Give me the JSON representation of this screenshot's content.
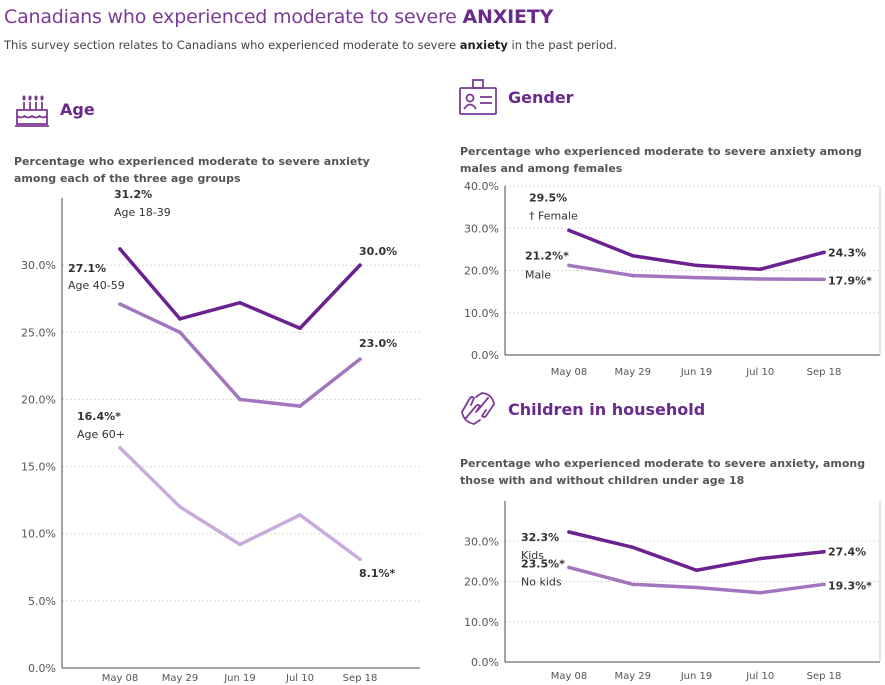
{
  "header": {
    "title_prefix": "Canadians who experienced moderate to severe ",
    "title_emphasis": "ANXIETY",
    "subtitle_prefix": "This survey section relates to Canadians who experienced moderate to severe ",
    "subtitle_emphasis": "anxiety",
    "subtitle_suffix": " in the past period."
  },
  "sections": {
    "age": {
      "title": "Age",
      "icon": "birthday-cake-icon",
      "description": "Percentage who experienced moderate to severe anxiety among each of the three age groups"
    },
    "gender": {
      "title": "Gender",
      "icon": "id-badge-icon",
      "description": "Percentage who experienced moderate to severe anxiety among males and among females"
    },
    "children": {
      "title": "Children in household",
      "icon": "holding-hands-icon",
      "description": "Percentage who experienced moderate to severe anxiety, among those with and without children under age 18"
    }
  },
  "colors": {
    "accent": "#6a2a8a",
    "dark": "#6b2290",
    "medium": "#a176bf",
    "light": "#c9abdc"
  },
  "chart_data": [
    {
      "id": "age",
      "type": "line",
      "categories": [
        "May 08",
        "May 29",
        "Jun 19",
        "Jul 10",
        "Sep 18"
      ],
      "ylim": [
        0,
        35
      ],
      "yticks": [
        0,
        5,
        10,
        15,
        20,
        25,
        30
      ],
      "tick_labels": [
        "0.0%",
        "5.0%",
        "10.0%",
        "15.0%",
        "20.0%",
        "25.0%",
        "30.0%"
      ],
      "grid": true,
      "series": [
        {
          "name": "Age 18-39",
          "values": [
            31.2,
            26.0,
            27.2,
            25.3,
            30.0
          ],
          "color": "#6b2290",
          "start_label": "31.2%",
          "end_label": "30.0%"
        },
        {
          "name": "Age 40-59",
          "values": [
            27.1,
            25.0,
            20.0,
            19.5,
            23.0
          ],
          "color": "#a176bf",
          "start_label": "27.1%",
          "end_label": "23.0%"
        },
        {
          "name": "Age 60+",
          "values": [
            16.4,
            12.0,
            9.2,
            11.4,
            8.1
          ],
          "color": "#c9abdc",
          "start_label": "16.4%*",
          "end_label": "8.1%*"
        }
      ]
    },
    {
      "id": "gender",
      "type": "line",
      "categories": [
        "May 08",
        "May 29",
        "Jun 19",
        "Jul 10",
        "Sep 18"
      ],
      "ylim": [
        0,
        40
      ],
      "yticks": [
        0,
        10,
        20,
        30,
        40
      ],
      "tick_labels": [
        "0.0%",
        "10.0%",
        "20.0%",
        "30.0%",
        "40.0%"
      ],
      "grid": true,
      "series": [
        {
          "name": "† Female",
          "values": [
            29.5,
            23.5,
            21.2,
            20.3,
            24.3
          ],
          "color": "#6b2290",
          "start_label": "29.5%",
          "end_label": "24.3%"
        },
        {
          "name": "Male",
          "values": [
            21.2,
            18.8,
            18.3,
            18.0,
            17.9
          ],
          "color": "#a176bf",
          "start_label": "21.2%*",
          "end_label": "17.9%*"
        }
      ]
    },
    {
      "id": "children",
      "type": "line",
      "categories": [
        "May 08",
        "May 29",
        "Jun 19",
        "Jul 10",
        "Sep 18"
      ],
      "ylim": [
        0,
        40
      ],
      "yticks": [
        0,
        10,
        20,
        30
      ],
      "tick_labels": [
        "0.0%",
        "10.0%",
        "20.0%",
        "30.0%"
      ],
      "grid": true,
      "series": [
        {
          "name": "Kids",
          "values": [
            32.3,
            28.5,
            22.8,
            25.7,
            27.4
          ],
          "color": "#6b2290",
          "start_label": "32.3%",
          "end_label": "27.4%"
        },
        {
          "name": "No kids",
          "values": [
            23.5,
            19.3,
            18.5,
            17.2,
            19.3
          ],
          "color": "#a176bf",
          "start_label": "23.5%*",
          "end_label": "19.3%*"
        }
      ]
    }
  ]
}
